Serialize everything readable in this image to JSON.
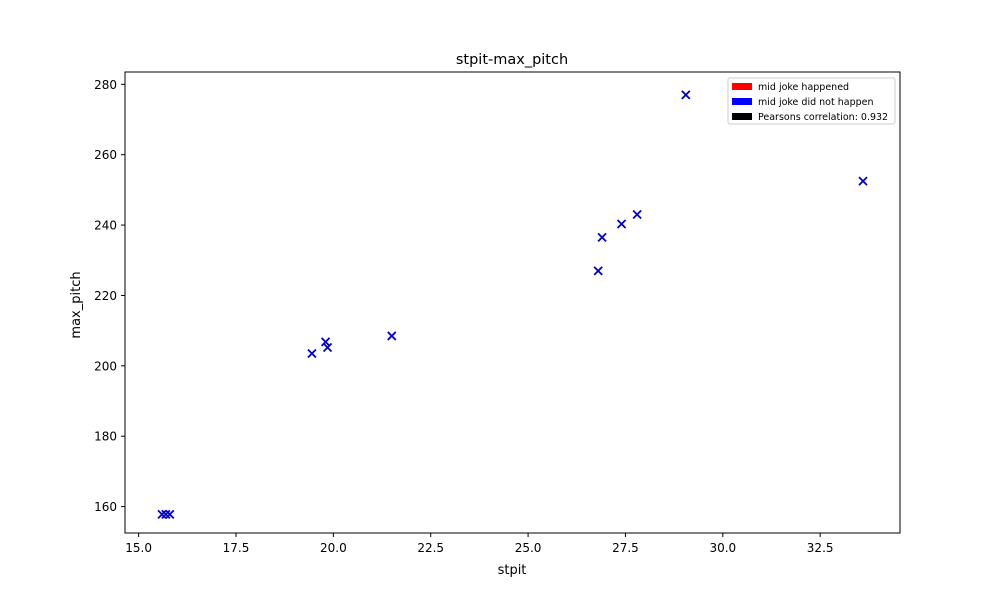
{
  "chart_data": {
    "type": "scatter",
    "title": "stpit-max_pitch",
    "xlabel": "stpit",
    "ylabel": "max_pitch",
    "xlim": [
      14.65,
      34.55
    ],
    "ylim": [
      152.5,
      283.5
    ],
    "xticks": [
      15.0,
      17.5,
      20.0,
      22.5,
      25.0,
      27.5,
      30.0,
      32.5
    ],
    "xtick_labels": [
      "15.0",
      "17.5",
      "20.0",
      "22.5",
      "25.0",
      "27.5",
      "30.0",
      "32.5"
    ],
    "yticks": [
      160,
      180,
      200,
      220,
      240,
      260,
      280
    ],
    "ytick_labels": [
      "160",
      "180",
      "200",
      "220",
      "240",
      "260",
      "280"
    ],
    "grid": false,
    "marker": "x",
    "legend_position": "top-right",
    "legend": [
      {
        "label": "mid joke happened",
        "color": "#ff0000"
      },
      {
        "label": "mid joke did not happen",
        "color": "#0000ff"
      },
      {
        "label": "Pearsons correlation: 0.932",
        "color": "#000000"
      }
    ],
    "series": [
      {
        "color": "#0000cc",
        "points": [
          {
            "x": 15.6,
            "y": 157.8
          },
          {
            "x": 15.7,
            "y": 157.8
          },
          {
            "x": 15.8,
            "y": 157.8
          },
          {
            "x": 19.45,
            "y": 203.5
          },
          {
            "x": 19.8,
            "y": 206.8
          },
          {
            "x": 19.85,
            "y": 205.2
          },
          {
            "x": 21.5,
            "y": 208.5
          },
          {
            "x": 26.8,
            "y": 227.0
          },
          {
            "x": 26.9,
            "y": 236.5
          },
          {
            "x": 27.4,
            "y": 240.3
          },
          {
            "x": 27.8,
            "y": 243.0
          },
          {
            "x": 29.05,
            "y": 277.0
          },
          {
            "x": 33.6,
            "y": 252.5
          }
        ]
      }
    ]
  }
}
